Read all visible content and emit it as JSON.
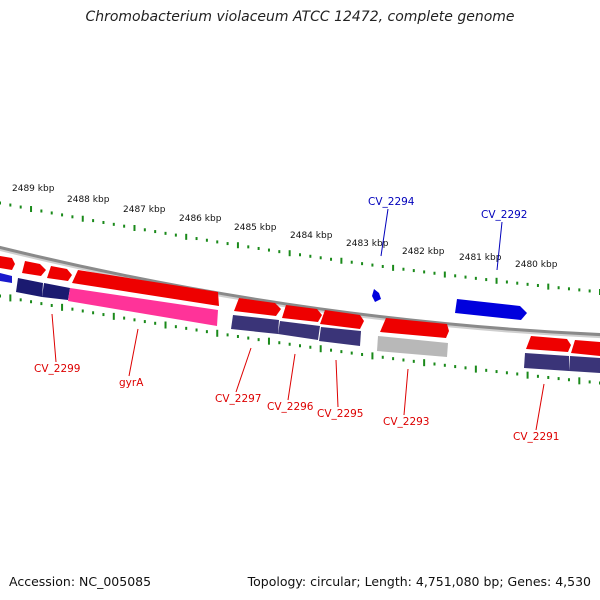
{
  "title": "Chromobacterium violaceum ATCC 12472, complete genome",
  "footer": {
    "accession": "Accession: NC_005085",
    "topology": "Topology: circular; Length: 4,751,080 bp; Genes: 4,530"
  },
  "colors": {
    "forward_gene": "#ee0000",
    "reverse_gene": "#0000dd",
    "cds": "#3a3478",
    "rna": "#ff3399",
    "pseudo": "#bbbbbb",
    "backbone": "#8a8a8a",
    "tick": "#1a8a1a",
    "label_forward": "#0000bb",
    "label_reverse": "#dd0000"
  },
  "ruler": [
    {
      "label": "2489 kbp"
    },
    {
      "label": "2488 kbp"
    },
    {
      "label": "2487 kbp"
    },
    {
      "label": "2486 kbp"
    },
    {
      "label": "2485 kbp"
    },
    {
      "label": "2484 kbp"
    },
    {
      "label": "2483 kbp"
    },
    {
      "label": "2482 kbp"
    },
    {
      "label": "2481 kbp"
    },
    {
      "label": "2480 kbp"
    }
  ],
  "gene_labels_forward": [
    {
      "text": "CV_2294"
    },
    {
      "text": "CV_2292"
    }
  ],
  "gene_labels_reverse": [
    {
      "text": "CV_2299"
    },
    {
      "text": "gyrA"
    },
    {
      "text": "CV_2297"
    },
    {
      "text": "CV_2296"
    },
    {
      "text": "CV_2295"
    },
    {
      "text": "CV_2293"
    },
    {
      "text": "CV_2291"
    }
  ]
}
